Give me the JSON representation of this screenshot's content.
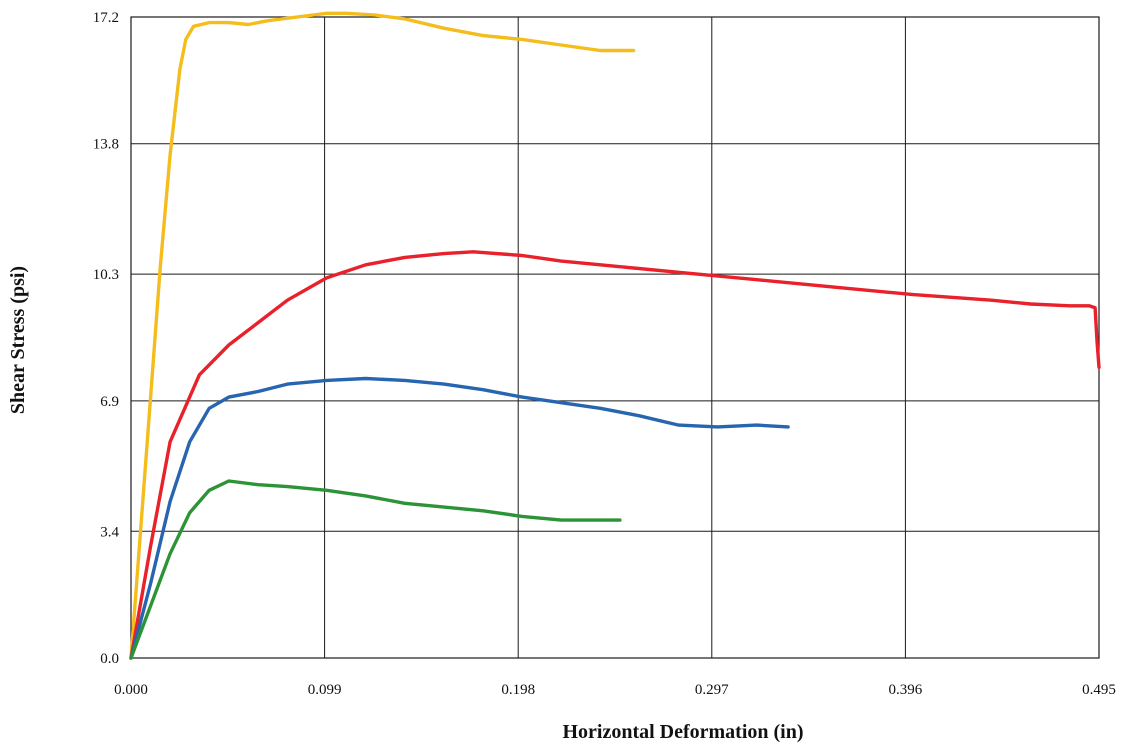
{
  "chart_data": {
    "type": "line",
    "title": "",
    "xlabel": "Horizontal Deformation (in)",
    "ylabel": "Shear Stress (psi)",
    "xlim": [
      0,
      0.495
    ],
    "ylim": [
      0,
      17.2
    ],
    "x_ticks": [
      "0.000",
      "0.099",
      "0.198",
      "0.297",
      "0.396",
      "0.495"
    ],
    "y_ticks": [
      "0.0",
      "3.4",
      "6.9",
      "10.3",
      "13.8",
      "17.2"
    ],
    "x_tick_values": [
      0,
      0.099,
      0.198,
      0.297,
      0.396,
      0.495
    ],
    "y_tick_values": [
      0,
      3.4,
      6.9,
      10.3,
      13.8,
      17.2
    ],
    "grid": true,
    "legend": "none",
    "series": [
      {
        "color": "#f4bd1c",
        "points": [
          [
            0,
            0
          ],
          [
            0.005,
            3.5
          ],
          [
            0.01,
            7.0
          ],
          [
            0.015,
            10.5
          ],
          [
            0.02,
            13.5
          ],
          [
            0.025,
            15.8
          ],
          [
            0.028,
            16.6
          ],
          [
            0.032,
            16.95
          ],
          [
            0.04,
            17.05
          ],
          [
            0.05,
            17.05
          ],
          [
            0.06,
            17.0
          ],
          [
            0.07,
            17.1
          ],
          [
            0.085,
            17.2
          ],
          [
            0.1,
            17.3
          ],
          [
            0.11,
            17.3
          ],
          [
            0.125,
            17.25
          ],
          [
            0.14,
            17.15
          ],
          [
            0.16,
            16.9
          ],
          [
            0.18,
            16.7
          ],
          [
            0.2,
            16.6
          ],
          [
            0.22,
            16.45
          ],
          [
            0.24,
            16.3
          ],
          [
            0.257,
            16.3
          ]
        ]
      },
      {
        "color": "#e8212b",
        "points": [
          [
            0,
            0
          ],
          [
            0.01,
            3.0
          ],
          [
            0.02,
            5.8
          ],
          [
            0.035,
            7.6
          ],
          [
            0.05,
            8.4
          ],
          [
            0.065,
            9.0
          ],
          [
            0.08,
            9.6
          ],
          [
            0.1,
            10.2
          ],
          [
            0.12,
            10.55
          ],
          [
            0.14,
            10.75
          ],
          [
            0.16,
            10.85
          ],
          [
            0.175,
            10.9
          ],
          [
            0.2,
            10.8
          ],
          [
            0.22,
            10.65
          ],
          [
            0.25,
            10.5
          ],
          [
            0.28,
            10.35
          ],
          [
            0.32,
            10.15
          ],
          [
            0.36,
            9.95
          ],
          [
            0.4,
            9.75
          ],
          [
            0.44,
            9.6
          ],
          [
            0.46,
            9.5
          ],
          [
            0.48,
            9.45
          ],
          [
            0.49,
            9.45
          ],
          [
            0.493,
            9.4
          ],
          [
            0.494,
            8.5
          ],
          [
            0.495,
            7.8
          ]
        ]
      },
      {
        "color": "#2765b0",
        "points": [
          [
            0,
            0
          ],
          [
            0.01,
            2.0
          ],
          [
            0.02,
            4.2
          ],
          [
            0.03,
            5.8
          ],
          [
            0.04,
            6.7
          ],
          [
            0.05,
            7.0
          ],
          [
            0.065,
            7.15
          ],
          [
            0.08,
            7.35
          ],
          [
            0.1,
            7.45
          ],
          [
            0.12,
            7.5
          ],
          [
            0.14,
            7.45
          ],
          [
            0.16,
            7.35
          ],
          [
            0.18,
            7.2
          ],
          [
            0.2,
            7.0
          ],
          [
            0.22,
            6.85
          ],
          [
            0.24,
            6.7
          ],
          [
            0.26,
            6.5
          ],
          [
            0.28,
            6.25
          ],
          [
            0.3,
            6.2
          ],
          [
            0.32,
            6.25
          ],
          [
            0.336,
            6.2
          ]
        ]
      },
      {
        "color": "#2c9436",
        "points": [
          [
            0,
            0
          ],
          [
            0.01,
            1.4
          ],
          [
            0.02,
            2.8
          ],
          [
            0.03,
            3.9
          ],
          [
            0.04,
            4.5
          ],
          [
            0.05,
            4.75
          ],
          [
            0.065,
            4.65
          ],
          [
            0.08,
            4.6
          ],
          [
            0.1,
            4.5
          ],
          [
            0.12,
            4.35
          ],
          [
            0.14,
            4.15
          ],
          [
            0.16,
            4.05
          ],
          [
            0.18,
            3.95
          ],
          [
            0.2,
            3.8
          ],
          [
            0.22,
            3.7
          ],
          [
            0.24,
            3.7
          ],
          [
            0.25,
            3.7
          ]
        ]
      }
    ]
  }
}
